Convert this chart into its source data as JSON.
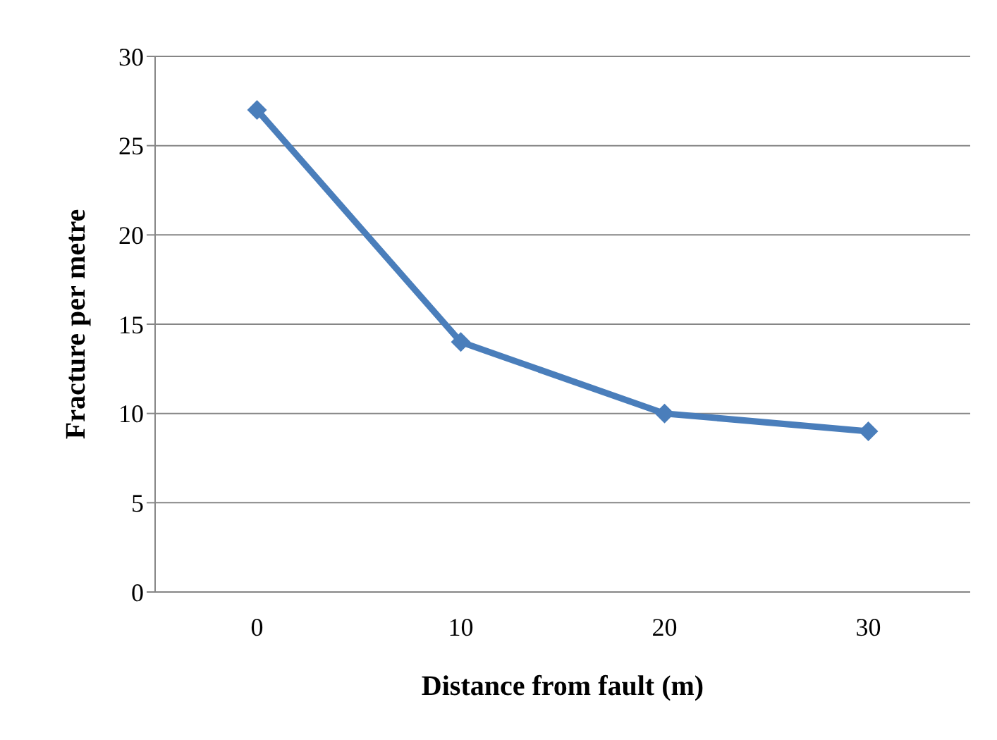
{
  "chart_data": {
    "type": "line",
    "xlabel": "Distance from fault (m)",
    "ylabel": "Fracture per metre",
    "categories": [
      "0",
      "10",
      "20",
      "30"
    ],
    "series": [
      {
        "color": "#4a7ebb",
        "values": [
          27,
          14,
          10,
          9
        ]
      }
    ],
    "ylim": [
      0,
      30
    ],
    "yticks": [
      0,
      5,
      10,
      15,
      20,
      25,
      30
    ],
    "grid": "y",
    "legend": false,
    "marker": "diamond",
    "line_style": "solid"
  }
}
